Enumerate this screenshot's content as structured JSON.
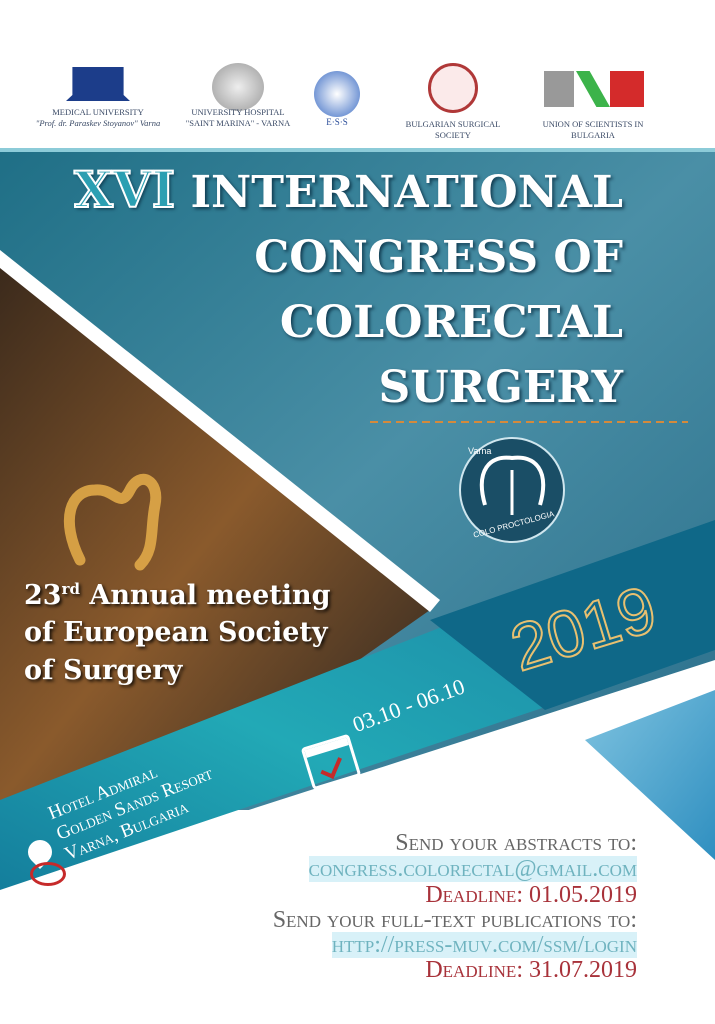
{
  "logos": [
    {
      "name": "medical-university",
      "line1": "MEDICAL UNIVERSITY",
      "line2": "\"Prof. dr. Paraskev Stoyanov\" Varna"
    },
    {
      "name": "university-hospital",
      "line1": "UNIVERSITY HOSPITAL",
      "line2": "\"SAINT MARINA\" - VARNA"
    },
    {
      "name": "ess",
      "line1": "E·S·S",
      "line2": ""
    },
    {
      "name": "bulgarian-surgical-society",
      "line1": "BULGARIAN SURGICAL",
      "line2": "SOCIETY"
    },
    {
      "name": "union-of-scientists",
      "line1": "UNION OF SCIENTISTS IN",
      "line2": "BULGARIA"
    }
  ],
  "title": {
    "numeral": "XVI",
    "line1": "INTERNATIONAL",
    "line2": "CONGRESS OF",
    "line3": "COLORECTAL",
    "line4": "SURGERY"
  },
  "emblem": {
    "top": "Varna",
    "bottom": "COLO PROCTOLOGIA"
  },
  "subtitle": {
    "ordinal": "23",
    "suffix": "rd",
    "line1": " Annual meeting",
    "line2": "of European Society",
    "line3": "of Surgery"
  },
  "year": "2019",
  "dates": "03.10 - 06.10",
  "venue": {
    "line1": "Hotel Admiral",
    "line2": "Golden Sands Resort",
    "line3": "Varna, Bulgaria"
  },
  "submission": {
    "abstracts_label": "Send your abstracts to:",
    "email": "congress.colorectal@gmail.com",
    "deadline1": "Deadline: 01.05.2019",
    "fulltext_label": "Send your full-text publications to:",
    "url": "http://press-muv.com/ssm/login",
    "deadline2": "Deadline: 31.07.2019"
  },
  "colors": {
    "teal": "#1b8fa6",
    "dark_blue": "#0e5f80",
    "gold": "#e0b45a",
    "red": "#b0282e",
    "text_gray": "#555"
  }
}
